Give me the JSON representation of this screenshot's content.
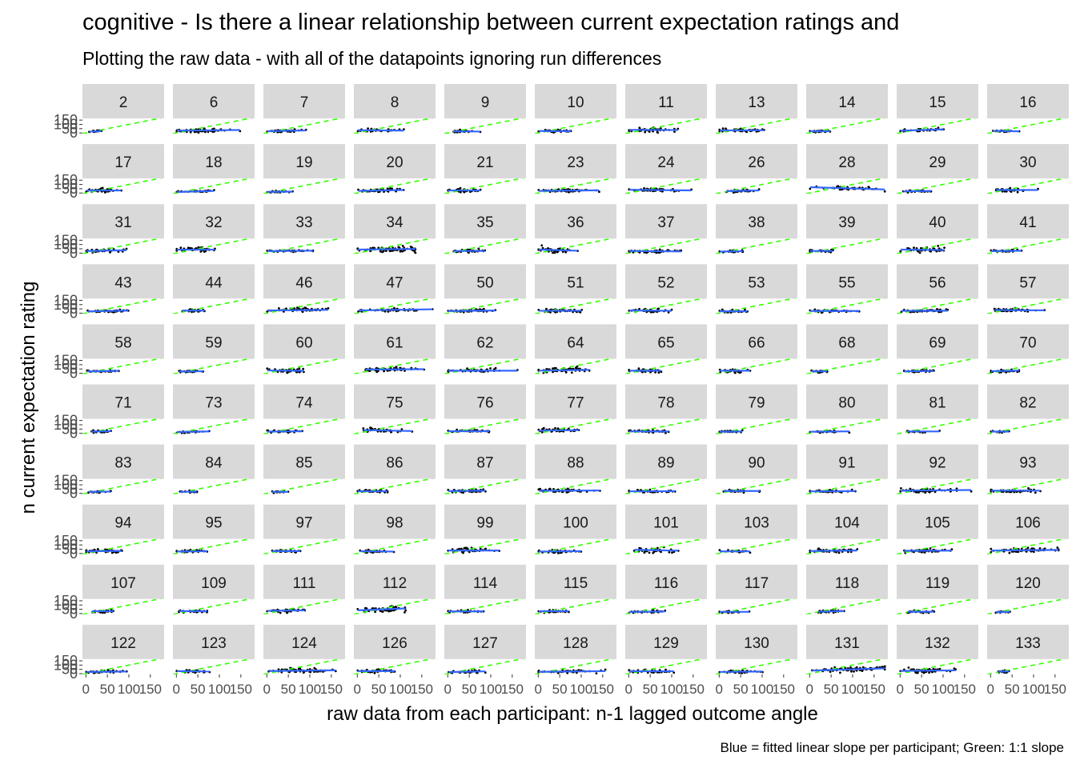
{
  "title": "cognitive - Is there a linear relationship between current expectation ratings and",
  "subtitle": "Plotting the raw data - with all of the datapoints ignoring run differences",
  "caption": "Blue = fitted linear slope per participant; Green: 1:1 slope",
  "colors": {
    "strip": "#d9d9d9",
    "fit_line": "#3366ff",
    "identity_line": "#33ff00",
    "points": "#000000"
  },
  "chart_data": {
    "type": "scatter",
    "facet_by": "participant",
    "xlabel": "raw data from each participant: n-1 lagged outcome angle",
    "ylabel": "n current expectation rating",
    "x_ticks": [
      0,
      50,
      100,
      150
    ],
    "x_tick_labels": [
      "0",
      "50",
      "100",
      "150"
    ],
    "y_ticks": [
      0,
      50,
      100,
      150
    ],
    "y_tick_labels": [
      "0",
      "50",
      "100",
      "150"
    ],
    "xlim": [
      -8,
      182
    ],
    "ylim": [
      -8,
      170
    ],
    "grid": false,
    "reference_line": {
      "label": "1:1 slope",
      "slope": 1,
      "intercept": 0,
      "style": "dashed"
    },
    "facets": [
      {
        "id": "2",
        "x_mean": 20,
        "x_sd": 8,
        "y_mean": 18,
        "y_sd": 5,
        "n": 18,
        "slope": 0.25
      },
      {
        "id": "6",
        "x_mean": 60,
        "x_sd": 32,
        "y_mean": 30,
        "y_sd": 10,
        "n": 60,
        "slope": 0.05
      },
      {
        "id": "7",
        "x_mean": 42,
        "x_sd": 22,
        "y_mean": 24,
        "y_sd": 6,
        "n": 40,
        "slope": 0.1
      },
      {
        "id": "8",
        "x_mean": 45,
        "x_sd": 25,
        "y_mean": 30,
        "y_sd": 9,
        "n": 35,
        "slope": -0.05
      },
      {
        "id": "9",
        "x_mean": 35,
        "x_sd": 18,
        "y_mean": 18,
        "y_sd": 6,
        "n": 30,
        "slope": -0.05
      },
      {
        "id": "10",
        "x_mean": 38,
        "x_sd": 20,
        "y_mean": 22,
        "y_sd": 7,
        "n": 35,
        "slope": -0.02
      },
      {
        "id": "11",
        "x_mean": 50,
        "x_sd": 25,
        "y_mean": 35,
        "y_sd": 12,
        "n": 45,
        "slope": -0.02
      },
      {
        "id": "13",
        "x_mean": 50,
        "x_sd": 28,
        "y_mean": 30,
        "y_sd": 8,
        "n": 45,
        "slope": 0.02
      },
      {
        "id": "14",
        "x_mean": 25,
        "x_sd": 12,
        "y_mean": 20,
        "y_sd": 7,
        "n": 25,
        "slope": 0.02
      },
      {
        "id": "15",
        "x_mean": 60,
        "x_sd": 30,
        "y_mean": 35,
        "y_sd": 9,
        "n": 35,
        "slope": 0.15
      },
      {
        "id": "16",
        "x_mean": 30,
        "x_sd": 15,
        "y_mean": 22,
        "y_sd": 6,
        "n": 20,
        "slope": -0.1
      },
      {
        "id": "17",
        "x_mean": 40,
        "x_sd": 22,
        "y_mean": 30,
        "y_sd": 10,
        "n": 40,
        "slope": 0
      },
      {
        "id": "18",
        "x_mean": 45,
        "x_sd": 25,
        "y_mean": 18,
        "y_sd": 5,
        "n": 30,
        "slope": 0.15
      },
      {
        "id": "19",
        "x_mean": 30,
        "x_sd": 15,
        "y_mean": 15,
        "y_sd": 5,
        "n": 25,
        "slope": 0.05
      },
      {
        "id": "20",
        "x_mean": 55,
        "x_sd": 28,
        "y_mean": 30,
        "y_sd": 10,
        "n": 50,
        "slope": 0.1
      },
      {
        "id": "21",
        "x_mean": 40,
        "x_sd": 20,
        "y_mean": 30,
        "y_sd": 10,
        "n": 35,
        "slope": 0
      },
      {
        "id": "23",
        "x_mean": 65,
        "x_sd": 30,
        "y_mean": 28,
        "y_sd": 9,
        "n": 55,
        "slope": 0.05
      },
      {
        "id": "24",
        "x_mean": 60,
        "x_sd": 30,
        "y_mean": 35,
        "y_sd": 10,
        "n": 55,
        "slope": -0.05
      },
      {
        "id": "26",
        "x_mean": 45,
        "x_sd": 20,
        "y_mean": 25,
        "y_sd": 7,
        "n": 30,
        "slope": 0.1
      },
      {
        "id": "28",
        "x_mean": 85,
        "x_sd": 40,
        "y_mean": 55,
        "y_sd": 10,
        "n": 40,
        "slope": -0.15
      },
      {
        "id": "29",
        "x_mean": 40,
        "x_sd": 20,
        "y_mean": 22,
        "y_sd": 6,
        "n": 30,
        "slope": 0.08
      },
      {
        "id": "30",
        "x_mean": 40,
        "x_sd": 20,
        "y_mean": 35,
        "y_sd": 10,
        "n": 35,
        "slope": 0
      },
      {
        "id": "31",
        "x_mean": 40,
        "x_sd": 22,
        "y_mean": 28,
        "y_sd": 9,
        "n": 40,
        "slope": 0.1
      },
      {
        "id": "32",
        "x_mean": 50,
        "x_sd": 28,
        "y_mean": 40,
        "y_sd": 14,
        "n": 40,
        "slope": 0
      },
      {
        "id": "33",
        "x_mean": 45,
        "x_sd": 25,
        "y_mean": 25,
        "y_sd": 6,
        "n": 35,
        "slope": 0.05
      },
      {
        "id": "34",
        "x_mean": 75,
        "x_sd": 35,
        "y_mean": 45,
        "y_sd": 16,
        "n": 70,
        "slope": 0.05
      },
      {
        "id": "35",
        "x_mean": 45,
        "x_sd": 22,
        "y_mean": 25,
        "y_sd": 8,
        "n": 35,
        "slope": 0
      },
      {
        "id": "36",
        "x_mean": 40,
        "x_sd": 25,
        "y_mean": 35,
        "y_sd": 15,
        "n": 40,
        "slope": -0.15
      },
      {
        "id": "37",
        "x_mean": 60,
        "x_sd": 30,
        "y_mean": 22,
        "y_sd": 8,
        "n": 55,
        "slope": -0.05
      },
      {
        "id": "38",
        "x_mean": 30,
        "x_sd": 15,
        "y_mean": 20,
        "y_sd": 6,
        "n": 25,
        "slope": 0.1
      },
      {
        "id": "39",
        "x_mean": 35,
        "x_sd": 20,
        "y_mean": 25,
        "y_sd": 7,
        "n": 30,
        "slope": 0
      },
      {
        "id": "40",
        "x_mean": 55,
        "x_sd": 25,
        "y_mean": 38,
        "y_sd": 14,
        "n": 45,
        "slope": -0.05
      },
      {
        "id": "41",
        "x_mean": 35,
        "x_sd": 18,
        "y_mean": 25,
        "y_sd": 7,
        "n": 25,
        "slope": 0.05
      },
      {
        "id": "43",
        "x_mean": 50,
        "x_sd": 25,
        "y_mean": 25,
        "y_sd": 8,
        "n": 40,
        "slope": 0.1
      },
      {
        "id": "44",
        "x_mean": 40,
        "x_sd": 15,
        "y_mean": 30,
        "y_sd": 10,
        "n": 30,
        "slope": 0
      },
      {
        "id": "46",
        "x_mean": 70,
        "x_sd": 30,
        "y_mean": 35,
        "y_sd": 11,
        "n": 60,
        "slope": 0.05
      },
      {
        "id": "47",
        "x_mean": 80,
        "x_sd": 35,
        "y_mean": 38,
        "y_sd": 9,
        "n": 50,
        "slope": 0.08
      },
      {
        "id": "50",
        "x_mean": 55,
        "x_sd": 28,
        "y_mean": 28,
        "y_sd": 9,
        "n": 45,
        "slope": 0.05
      },
      {
        "id": "51",
        "x_mean": 50,
        "x_sd": 25,
        "y_mean": 28,
        "y_sd": 9,
        "n": 45,
        "slope": 0
      },
      {
        "id": "52",
        "x_mean": 45,
        "x_sd": 22,
        "y_mean": 30,
        "y_sd": 10,
        "n": 40,
        "slope": -0.05
      },
      {
        "id": "53",
        "x_mean": 40,
        "x_sd": 20,
        "y_mean": 22,
        "y_sd": 7,
        "n": 30,
        "slope": 0
      },
      {
        "id": "55",
        "x_mean": 50,
        "x_sd": 25,
        "y_mean": 25,
        "y_sd": 7,
        "n": 40,
        "slope": 0
      },
      {
        "id": "56",
        "x_mean": 60,
        "x_sd": 30,
        "y_mean": 28,
        "y_sd": 8,
        "n": 45,
        "slope": 0.02
      },
      {
        "id": "57",
        "x_mean": 55,
        "x_sd": 28,
        "y_mean": 35,
        "y_sd": 10,
        "n": 50,
        "slope": -0.03
      },
      {
        "id": "58",
        "x_mean": 40,
        "x_sd": 22,
        "y_mean": 25,
        "y_sd": 7,
        "n": 35,
        "slope": 0.1
      },
      {
        "id": "59",
        "x_mean": 35,
        "x_sd": 15,
        "y_mean": 22,
        "y_sd": 6,
        "n": 25,
        "slope": 0.05
      },
      {
        "id": "60",
        "x_mean": 50,
        "x_sd": 25,
        "y_mean": 30,
        "y_sd": 9,
        "n": 40,
        "slope": -0.05
      },
      {
        "id": "61",
        "x_mean": 75,
        "x_sd": 35,
        "y_mean": 45,
        "y_sd": 12,
        "n": 60,
        "slope": 0.03
      },
      {
        "id": "62",
        "x_mean": 55,
        "x_sd": 28,
        "y_mean": 30,
        "y_sd": 10,
        "n": 45,
        "slope": 0
      },
      {
        "id": "64",
        "x_mean": 60,
        "x_sd": 30,
        "y_mean": 35,
        "y_sd": 14,
        "n": 55,
        "slope": 0.08
      },
      {
        "id": "65",
        "x_mean": 40,
        "x_sd": 22,
        "y_mean": 30,
        "y_sd": 10,
        "n": 35,
        "slope": 0
      },
      {
        "id": "66",
        "x_mean": 35,
        "x_sd": 18,
        "y_mean": 30,
        "y_sd": 10,
        "n": 30,
        "slope": 0
      },
      {
        "id": "68",
        "x_mean": 25,
        "x_sd": 12,
        "y_mean": 22,
        "y_sd": 7,
        "n": 20,
        "slope": 0
      },
      {
        "id": "69",
        "x_mean": 45,
        "x_sd": 22,
        "y_mean": 25,
        "y_sd": 7,
        "n": 35,
        "slope": 0.05
      },
      {
        "id": "70",
        "x_mean": 35,
        "x_sd": 18,
        "y_mean": 28,
        "y_sd": 8,
        "n": 30,
        "slope": 0.1
      },
      {
        "id": "71",
        "x_mean": 30,
        "x_sd": 15,
        "y_mean": 22,
        "y_sd": 6,
        "n": 20,
        "slope": 0.15
      },
      {
        "id": "73",
        "x_mean": 35,
        "x_sd": 18,
        "y_mean": 18,
        "y_sd": 6,
        "n": 25,
        "slope": 0.1
      },
      {
        "id": "74",
        "x_mean": 40,
        "x_sd": 20,
        "y_mean": 22,
        "y_sd": 7,
        "n": 30,
        "slope": 0.05
      },
      {
        "id": "75",
        "x_mean": 45,
        "x_sd": 25,
        "y_mean": 35,
        "y_sd": 12,
        "n": 35,
        "slope": -0.1
      },
      {
        "id": "76",
        "x_mean": 50,
        "x_sd": 25,
        "y_mean": 25,
        "y_sd": 8,
        "n": 40,
        "slope": 0
      },
      {
        "id": "77",
        "x_mean": 50,
        "x_sd": 25,
        "y_mean": 35,
        "y_sd": 12,
        "n": 40,
        "slope": 0.05
      },
      {
        "id": "78",
        "x_mean": 55,
        "x_sd": 28,
        "y_mean": 22,
        "y_sd": 7,
        "n": 45,
        "slope": -0.02
      },
      {
        "id": "79",
        "x_mean": 30,
        "x_sd": 15,
        "y_mean": 20,
        "y_sd": 6,
        "n": 25,
        "slope": 0.05
      },
      {
        "id": "80",
        "x_mean": 35,
        "x_sd": 18,
        "y_mean": 20,
        "y_sd": 6,
        "n": 25,
        "slope": 0.05
      },
      {
        "id": "81",
        "x_mean": 35,
        "x_sd": 15,
        "y_mean": 22,
        "y_sd": 6,
        "n": 20,
        "slope": 0
      },
      {
        "id": "82",
        "x_mean": 25,
        "x_sd": 12,
        "y_mean": 20,
        "y_sd": 5,
        "n": 15,
        "slope": 0
      },
      {
        "id": "83",
        "x_mean": 30,
        "x_sd": 15,
        "y_mean": 20,
        "y_sd": 6,
        "n": 20,
        "slope": 0.05
      },
      {
        "id": "84",
        "x_mean": 35,
        "x_sd": 15,
        "y_mean": 20,
        "y_sd": 6,
        "n": 20,
        "slope": 0.05
      },
      {
        "id": "85",
        "x_mean": 30,
        "x_sd": 12,
        "y_mean": 18,
        "y_sd": 5,
        "n": 15,
        "slope": 0.05
      },
      {
        "id": "86",
        "x_mean": 40,
        "x_sd": 20,
        "y_mean": 25,
        "y_sd": 8,
        "n": 30,
        "slope": 0
      },
      {
        "id": "87",
        "x_mean": 55,
        "x_sd": 25,
        "y_mean": 30,
        "y_sd": 9,
        "n": 45,
        "slope": 0.05
      },
      {
        "id": "88",
        "x_mean": 60,
        "x_sd": 30,
        "y_mean": 32,
        "y_sd": 10,
        "n": 55,
        "slope": 0.02
      },
      {
        "id": "89",
        "x_mean": 50,
        "x_sd": 25,
        "y_mean": 25,
        "y_sd": 8,
        "n": 40,
        "slope": 0.02
      },
      {
        "id": "90",
        "x_mean": 40,
        "x_sd": 20,
        "y_mean": 28,
        "y_sd": 8,
        "n": 35,
        "slope": 0
      },
      {
        "id": "91",
        "x_mean": 50,
        "x_sd": 25,
        "y_mean": 25,
        "y_sd": 8,
        "n": 40,
        "slope": 0.03
      },
      {
        "id": "92",
        "x_mean": 65,
        "x_sd": 35,
        "y_mean": 35,
        "y_sd": 12,
        "n": 55,
        "slope": 0.05
      },
      {
        "id": "93",
        "x_mean": 55,
        "x_sd": 25,
        "y_mean": 32,
        "y_sd": 10,
        "n": 45,
        "slope": 0
      },
      {
        "id": "94",
        "x_mean": 45,
        "x_sd": 22,
        "y_mean": 28,
        "y_sd": 8,
        "n": 40,
        "slope": 0.05
      },
      {
        "id": "95",
        "x_mean": 40,
        "x_sd": 20,
        "y_mean": 25,
        "y_sd": 7,
        "n": 30,
        "slope": 0.05
      },
      {
        "id": "97",
        "x_mean": 40,
        "x_sd": 20,
        "y_mean": 28,
        "y_sd": 8,
        "n": 30,
        "slope": 0
      },
      {
        "id": "98",
        "x_mean": 40,
        "x_sd": 20,
        "y_mean": 25,
        "y_sd": 8,
        "n": 30,
        "slope": -0.05
      },
      {
        "id": "99",
        "x_mean": 50,
        "x_sd": 25,
        "y_mean": 35,
        "y_sd": 12,
        "n": 45,
        "slope": 0
      },
      {
        "id": "100",
        "x_mean": 50,
        "x_sd": 25,
        "y_mean": 25,
        "y_sd": 8,
        "n": 35,
        "slope": 0.05
      },
      {
        "id": "101",
        "x_mean": 45,
        "x_sd": 25,
        "y_mean": 40,
        "y_sd": 15,
        "n": 40,
        "slope": -0.1
      },
      {
        "id": "103",
        "x_mean": 40,
        "x_sd": 15,
        "y_mean": 25,
        "y_sd": 6,
        "n": 25,
        "slope": 0
      },
      {
        "id": "104",
        "x_mean": 55,
        "x_sd": 28,
        "y_mean": 32,
        "y_sd": 10,
        "n": 45,
        "slope": 0.05
      },
      {
        "id": "105",
        "x_mean": 55,
        "x_sd": 25,
        "y_mean": 32,
        "y_sd": 10,
        "n": 45,
        "slope": 0.02
      },
      {
        "id": "106",
        "x_mean": 80,
        "x_sd": 40,
        "y_mean": 38,
        "y_sd": 12,
        "n": 65,
        "slope": 0.05
      },
      {
        "id": "107",
        "x_mean": 30,
        "x_sd": 15,
        "y_mean": 28,
        "y_sd": 8,
        "n": 25,
        "slope": 0
      },
      {
        "id": "109",
        "x_mean": 40,
        "x_sd": 20,
        "y_mean": 28,
        "y_sd": 8,
        "n": 30,
        "slope": -0.02
      },
      {
        "id": "111",
        "x_mean": 45,
        "x_sd": 22,
        "y_mean": 35,
        "y_sd": 12,
        "n": 40,
        "slope": 0.08
      },
      {
        "id": "112",
        "x_mean": 60,
        "x_sd": 30,
        "y_mean": 50,
        "y_sd": 18,
        "n": 45,
        "slope": 0.2
      },
      {
        "id": "114",
        "x_mean": 40,
        "x_sd": 20,
        "y_mean": 25,
        "y_sd": 7,
        "n": 30,
        "slope": 0
      },
      {
        "id": "115",
        "x_mean": 40,
        "x_sd": 20,
        "y_mean": 28,
        "y_sd": 8,
        "n": 30,
        "slope": 0
      },
      {
        "id": "116",
        "x_mean": 45,
        "x_sd": 22,
        "y_mean": 22,
        "y_sd": 7,
        "n": 35,
        "slope": 0.05
      },
      {
        "id": "117",
        "x_mean": 30,
        "x_sd": 15,
        "y_mean": 20,
        "y_sd": 6,
        "n": 20,
        "slope": 0
      },
      {
        "id": "118",
        "x_mean": 45,
        "x_sd": 22,
        "y_mean": 25,
        "y_sd": 7,
        "n": 30,
        "slope": 0.15
      },
      {
        "id": "119",
        "x_mean": 40,
        "x_sd": 20,
        "y_mean": 22,
        "y_sd": 7,
        "n": 30,
        "slope": 0
      },
      {
        "id": "120",
        "x_mean": 25,
        "x_sd": 12,
        "y_mean": 18,
        "y_sd": 5,
        "n": 15,
        "slope": 0.1
      },
      {
        "id": "122",
        "x_mean": 45,
        "x_sd": 22,
        "y_mean": 22,
        "y_sd": 7,
        "n": 35,
        "slope": 0.05
      },
      {
        "id": "123",
        "x_mean": 40,
        "x_sd": 22,
        "y_mean": 28,
        "y_sd": 8,
        "n": 30,
        "slope": -0.05
      },
      {
        "id": "124",
        "x_mean": 80,
        "x_sd": 40,
        "y_mean": 35,
        "y_sd": 12,
        "n": 60,
        "slope": 0.05
      },
      {
        "id": "126",
        "x_mean": 45,
        "x_sd": 22,
        "y_mean": 30,
        "y_sd": 9,
        "n": 35,
        "slope": 0
      },
      {
        "id": "127",
        "x_mean": 40,
        "x_sd": 20,
        "y_mean": 22,
        "y_sd": 7,
        "n": 30,
        "slope": 0.1
      },
      {
        "id": "128",
        "x_mean": 70,
        "x_sd": 35,
        "y_mean": 25,
        "y_sd": 9,
        "n": 45,
        "slope": 0.05
      },
      {
        "id": "129",
        "x_mean": 50,
        "x_sd": 25,
        "y_mean": 28,
        "y_sd": 9,
        "n": 40,
        "slope": 0
      },
      {
        "id": "130",
        "x_mean": 50,
        "x_sd": 25,
        "y_mean": 22,
        "y_sd": 7,
        "n": 40,
        "slope": 0.05
      },
      {
        "id": "131",
        "x_mean": 95,
        "x_sd": 45,
        "y_mean": 50,
        "y_sd": 12,
        "n": 75,
        "slope": 0.15
      },
      {
        "id": "132",
        "x_mean": 60,
        "x_sd": 30,
        "y_mean": 35,
        "y_sd": 12,
        "n": 55,
        "slope": 0.05
      },
      {
        "id": "133",
        "x_mean": 30,
        "x_sd": 15,
        "y_mean": 25,
        "y_sd": 7,
        "n": 20,
        "slope": 0.05
      }
    ]
  }
}
